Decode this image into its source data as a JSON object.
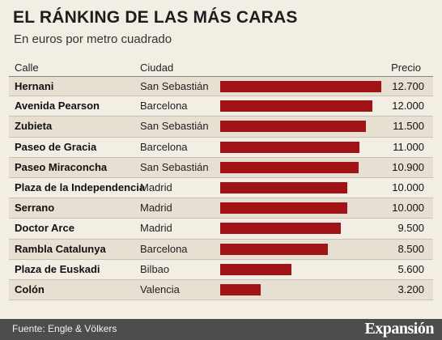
{
  "title": "EL RÁNKING DE LAS MÁS CARAS",
  "subtitle": "En euros por metro cuadrado",
  "columns": {
    "street": "Calle",
    "city": "Ciudad",
    "price": "Precio"
  },
  "colors": {
    "bar": "#a01418",
    "background": "#f3eee3",
    "stripe": "#e6dfd2",
    "footer": "#4d4d4d"
  },
  "chart_data": {
    "type": "bar",
    "orientation": "horizontal",
    "categories": [
      "Hernani",
      "Avenida Pearson",
      "Zubieta",
      "Paseo de Gracia",
      "Paseo Miraconcha",
      "Plaza de la Independencia",
      "Serrano",
      "Doctor Arce",
      "Rambla Catalunya",
      "Plaza de Euskadi",
      "Colón"
    ],
    "cities": [
      "San Sebastián",
      "Barcelona",
      "San Sebastián",
      "Barcelona",
      "San Sebastián",
      "Madrid",
      "Madrid",
      "Madrid",
      "Barcelona",
      "Bilbao",
      "Valencia"
    ],
    "values": [
      12700,
      12000,
      11500,
      11000,
      10900,
      10000,
      10000,
      9500,
      8500,
      5600,
      3200
    ],
    "value_labels": [
      "12.700",
      "12.000",
      "11.500",
      "11.000",
      "10.900",
      "10.000",
      "10.000",
      "9.500",
      "8.500",
      "5.600",
      "3.200"
    ],
    "xlim": [
      0,
      12700
    ]
  },
  "footer": {
    "source": "Fuente: Engle & Völkers",
    "logo": "Expansión"
  }
}
